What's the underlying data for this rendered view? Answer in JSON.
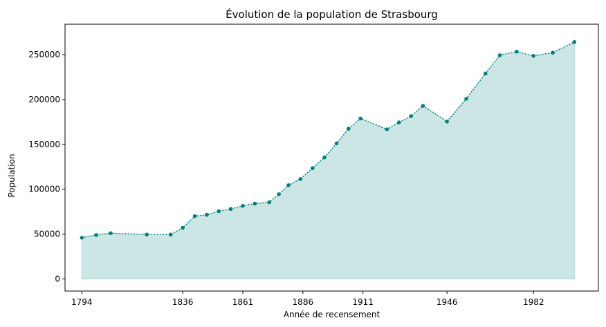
{
  "chart_data": {
    "type": "area",
    "title": "Évolution de la population de Strasbourg",
    "xlabel": "Année de recensement",
    "ylabel": "Population",
    "x_ticks": [
      1794,
      1836,
      1861,
      1886,
      1911,
      1946,
      1982
    ],
    "y_ticks": [
      0,
      50000,
      100000,
      150000,
      200000,
      250000
    ],
    "xlim": [
      1787,
      2009
    ],
    "ylim": [
      -13500,
      284000
    ],
    "grid": false,
    "legend": "none",
    "colors": {
      "line": "#008080",
      "fill": "#cce6e6",
      "fill_edge": "#a9d5d5"
    },
    "x": [
      1794,
      1800,
      1806,
      1821,
      1831,
      1836,
      1841,
      1846,
      1851,
      1856,
      1861,
      1866,
      1872,
      1876,
      1880,
      1885,
      1890,
      1895,
      1900,
      1905,
      1910,
      1921,
      1926,
      1931,
      1936,
      1946,
      1954,
      1962,
      1968,
      1975,
      1982,
      1990,
      1999
    ],
    "values": [
      46000,
      49000,
      51000,
      49500,
      49500,
      57000,
      70000,
      71500,
      75500,
      78000,
      81500,
      84000,
      85500,
      94500,
      104500,
      111500,
      123500,
      135500,
      151000,
      167500,
      178900,
      166800,
      174500,
      181500,
      193000,
      175500,
      200900,
      229000,
      249400,
      253400,
      248700,
      252300,
      264100
    ]
  }
}
